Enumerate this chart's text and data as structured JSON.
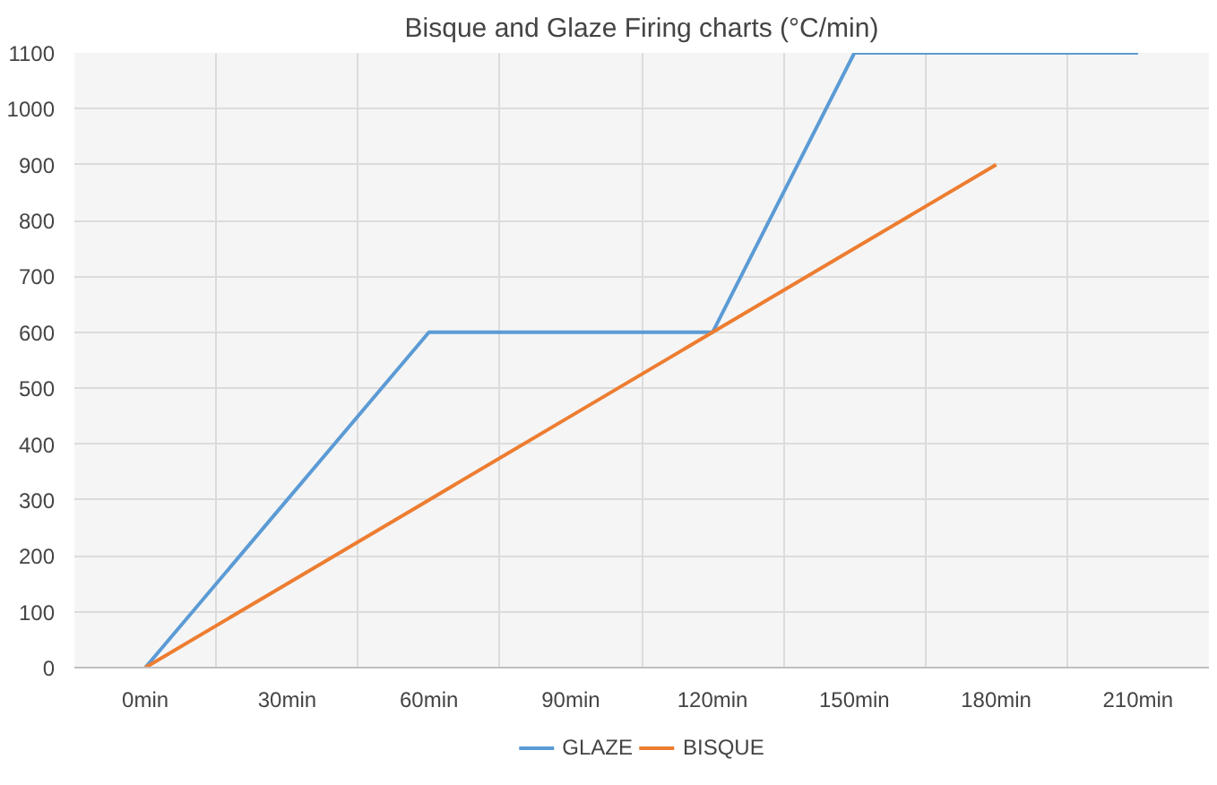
{
  "chart_data": {
    "type": "line",
    "title": "Bisque and Glaze Firing charts (°C/min)",
    "categories": [
      "0min",
      "30min",
      "60min",
      "90min",
      "120min",
      "150min",
      "180min",
      "210min"
    ],
    "series": [
      {
        "name": "GLAZE",
        "color": "#5b9bd5",
        "values": [
          0,
          300,
          600,
          600,
          600,
          1100,
          1100,
          1100
        ]
      },
      {
        "name": "BISQUE",
        "color": "#ed7d31",
        "values": [
          0,
          150,
          300,
          450,
          600,
          750,
          900,
          null
        ]
      }
    ],
    "ylim": [
      0,
      1100
    ],
    "yticks": [
      0,
      100,
      200,
      300,
      400,
      500,
      600,
      700,
      800,
      900,
      1000,
      1100
    ],
    "grid": true,
    "legend": "bottom",
    "marker": "none",
    "line_style": "solid"
  }
}
